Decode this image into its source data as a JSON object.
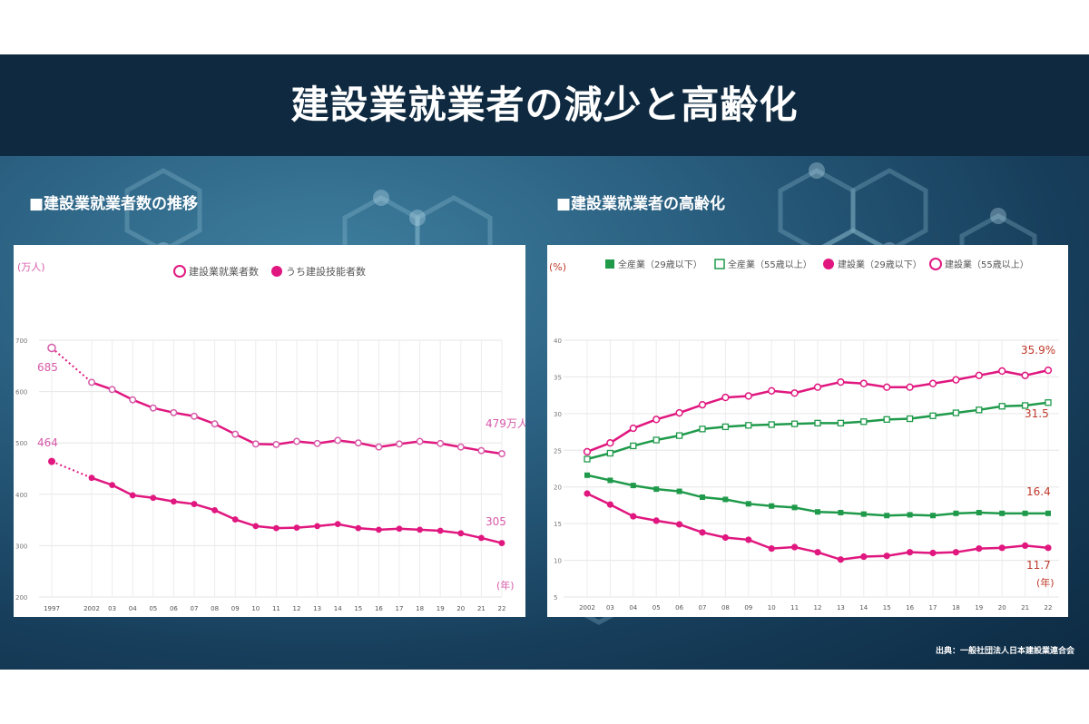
{
  "slide": {
    "title": "建設業就業者の減少と高齢化",
    "source": "出典：一般社団法人日本建設業連合会"
  },
  "colors": {
    "magenta": "#e0177f",
    "light_magenta": "#d75aa9",
    "green": "#1f9a4b",
    "title_bar": "#0f2a40",
    "red_label": "#c0392b"
  },
  "chart_data": [
    {
      "type": "line",
      "heading": "■建設業就業者数の推移",
      "ylabel": "(万人)",
      "xlabel": "(年)",
      "ylim": [
        200,
        700
      ],
      "yticks": [
        "200",
        "300",
        "400",
        "500",
        "600",
        "700"
      ],
      "categories": [
        "1997",
        "2002",
        "03",
        "04",
        "05",
        "06",
        "07",
        "08",
        "09",
        "10",
        "11",
        "12",
        "13",
        "14",
        "15",
        "16",
        "17",
        "18",
        "19",
        "20",
        "21",
        "22"
      ],
      "legend": [
        "建設業就業者数",
        "うち建設技能者数"
      ],
      "grid": true,
      "series": [
        {
          "name": "建設業就業者数",
          "marker": "open-circle",
          "values": [
            685,
            618,
            604,
            584,
            568,
            559,
            552,
            537,
            517,
            498,
            497,
            503,
            499,
            505,
            500,
            492,
            498,
            503,
            499,
            492,
            485,
            479
          ]
        },
        {
          "name": "うち建設技能者数",
          "marker": "filled-circle",
          "values": [
            464,
            432,
            418,
            398,
            393,
            386,
            381,
            369,
            351,
            338,
            334,
            335,
            338,
            342,
            334,
            331,
            333,
            331,
            329,
            324,
            315,
            305
          ]
        }
      ],
      "annotations": {
        "first_total": "685",
        "first_skilled": "464",
        "last_total": "479万人",
        "last_skilled": "305"
      }
    },
    {
      "type": "line",
      "heading": "■建設業就業者の高齢化",
      "ylabel": "(%)",
      "xlabel": "(年)",
      "ylim": [
        5,
        40
      ],
      "yticks": [
        "5",
        "10",
        "15",
        "20",
        "25",
        "30",
        "35",
        "40"
      ],
      "categories": [
        "2002",
        "03",
        "04",
        "05",
        "06",
        "07",
        "08",
        "09",
        "10",
        "11",
        "12",
        "13",
        "14",
        "15",
        "16",
        "17",
        "18",
        "19",
        "20",
        "21",
        "22"
      ],
      "legend": [
        "全産業（29歳以下）",
        "全産業（55歳以上）",
        "建設業（29歳以下）",
        "建設業（55歳以上）"
      ],
      "grid": true,
      "series": [
        {
          "name": "全産業（29歳以下）",
          "marker": "filled-square",
          "values": [
            21.6,
            20.9,
            20.2,
            19.7,
            19.4,
            18.6,
            18.3,
            17.7,
            17.4,
            17.2,
            16.6,
            16.5,
            16.3,
            16.1,
            16.2,
            16.1,
            16.4,
            16.5,
            16.4,
            16.4,
            16.4
          ]
        },
        {
          "name": "全産業（55歳以上）",
          "marker": "open-square",
          "values": [
            23.8,
            24.6,
            25.6,
            26.4,
            27.0,
            27.9,
            28.2,
            28.4,
            28.5,
            28.6,
            28.7,
            28.7,
            28.9,
            29.2,
            29.3,
            29.7,
            30.1,
            30.5,
            31.0,
            31.1,
            31.5
          ]
        },
        {
          "name": "建設業（29歳以下）",
          "marker": "filled-circle",
          "values": [
            19.1,
            17.6,
            16.0,
            15.4,
            14.9,
            13.8,
            13.1,
            12.8,
            11.6,
            11.8,
            11.1,
            10.1,
            10.5,
            10.6,
            11.1,
            11.0,
            11.1,
            11.6,
            11.7,
            12.0,
            11.7
          ]
        },
        {
          "name": "建設業（55歳以上）",
          "marker": "open-circle",
          "values": [
            24.8,
            26.0,
            28.0,
            29.2,
            30.1,
            31.2,
            32.2,
            32.4,
            33.1,
            32.8,
            33.6,
            34.3,
            34.1,
            33.6,
            33.6,
            34.1,
            34.6,
            35.2,
            35.8,
            35.2,
            35.9
          ]
        }
      ],
      "annotations": {
        "c55": "35.9%",
        "a55": "31.5",
        "a29": "16.4",
        "c29": "11.7"
      }
    }
  ]
}
